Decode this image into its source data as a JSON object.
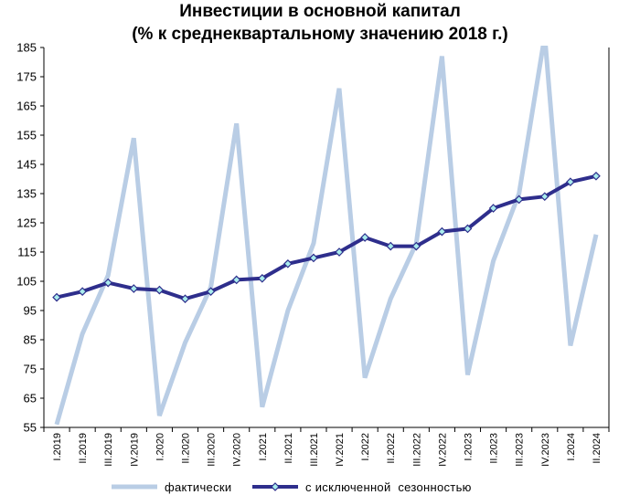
{
  "chart_data": {
    "type": "line",
    "title": "Инвестиции в основной капитал",
    "subtitle": "(% к среднеквартальному значению 2018 г.)",
    "xlabel": "",
    "ylabel": "",
    "ylim": [
      55,
      185
    ],
    "yticks": [
      55,
      65,
      75,
      85,
      95,
      105,
      115,
      125,
      135,
      145,
      155,
      165,
      175,
      185
    ],
    "grid": false,
    "legend_position": "bottom",
    "categories": [
      "I.2019",
      "II.2019",
      "III.2019",
      "IV.2019",
      "I.2020",
      "II.2020",
      "III.2020",
      "IV.2020",
      "I.2021",
      "II.2021",
      "III.2021",
      "IV.2021",
      "I.2022",
      "II.2022",
      "III.2022",
      "IV.2022",
      "I.2023",
      "II.2023",
      "III.2023",
      "IV.2023",
      "I.2024",
      "II.2024"
    ],
    "series": [
      {
        "name": "фактически",
        "color": "#b9cde5",
        "marker": "none",
        "values": [
          56,
          87,
          107,
          154,
          59,
          84,
          103,
          159,
          62,
          95,
          118,
          171,
          72,
          99,
          118,
          182,
          73,
          112,
          135,
          189,
          83,
          121
        ]
      },
      {
        "name": "с исключенной  сезонностью",
        "color": "#2e2e8c",
        "marker": "diamond",
        "marker_color": "#a9ecec",
        "values": [
          99.5,
          101.5,
          104.5,
          102.5,
          102,
          99,
          101.5,
          105.5,
          106,
          111,
          113,
          115,
          120,
          117,
          117,
          122,
          123,
          130,
          133,
          134,
          139,
          141
        ]
      }
    ]
  }
}
